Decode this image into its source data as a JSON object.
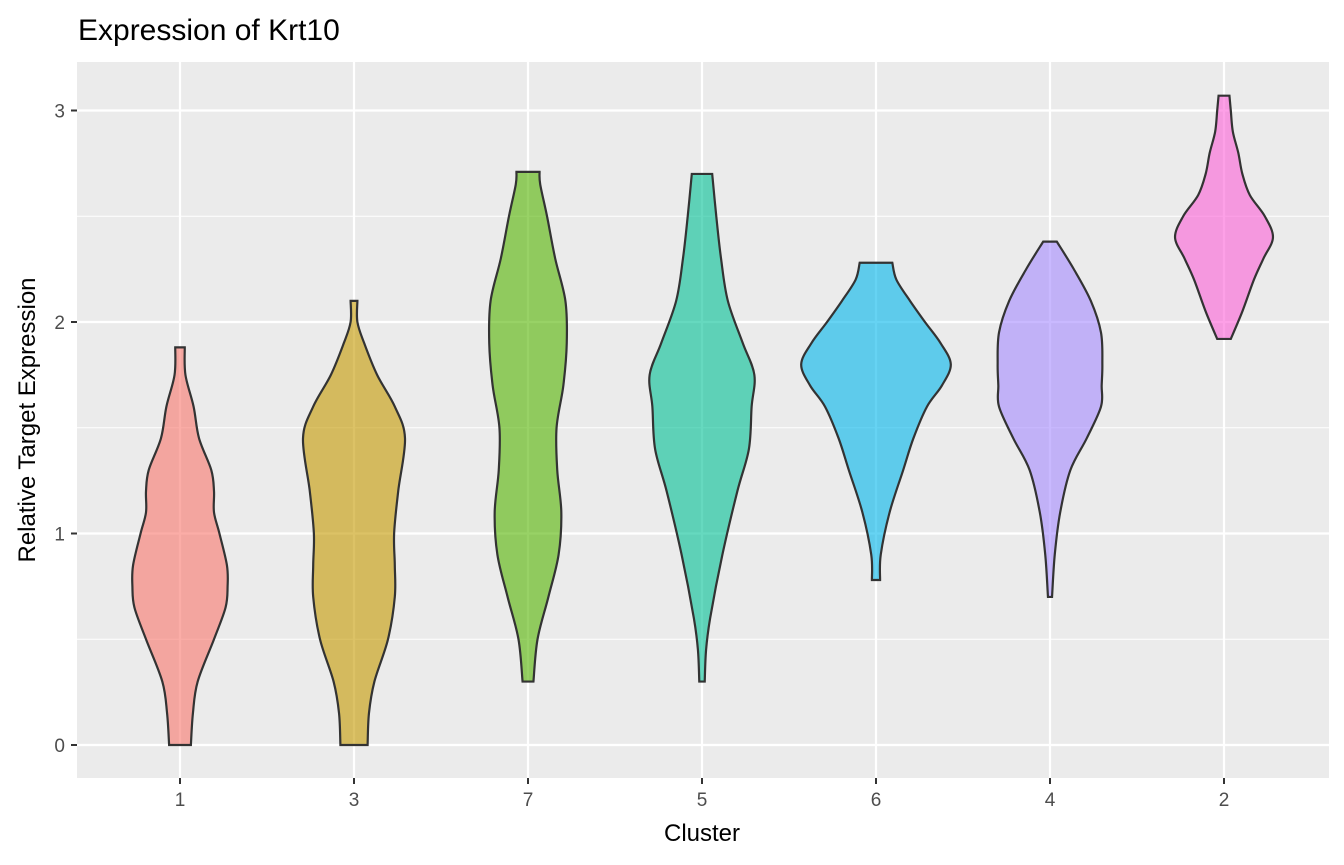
{
  "chart_data": {
    "type": "violin",
    "title": "Expression of Krt10",
    "xlabel": "Cluster",
    "ylabel": "Relative Target Expression",
    "ylim": [
      -0.15,
      3.2
    ],
    "yticks": [
      0,
      1,
      2,
      3
    ],
    "grid": true,
    "legend": "none",
    "categories": [
      "1",
      "3",
      "7",
      "5",
      "6",
      "4",
      "2"
    ],
    "series": [
      {
        "category": "1",
        "color": "#F8766D",
        "min": 0.0,
        "max": 1.88,
        "profile": [
          [
            0.0,
            0.16
          ],
          [
            0.15,
            0.19
          ],
          [
            0.3,
            0.26
          ],
          [
            0.5,
            0.5
          ],
          [
            0.65,
            0.67
          ],
          [
            0.75,
            0.7
          ],
          [
            0.85,
            0.69
          ],
          [
            1.0,
            0.58
          ],
          [
            1.1,
            0.5
          ],
          [
            1.2,
            0.5
          ],
          [
            1.3,
            0.46
          ],
          [
            1.45,
            0.28
          ],
          [
            1.6,
            0.2
          ],
          [
            1.75,
            0.08
          ],
          [
            1.88,
            0.07
          ]
        ]
      },
      {
        "category": "3",
        "color": "#C49A00",
        "min": 0.0,
        "max": 2.1,
        "profile": [
          [
            0.0,
            0.2
          ],
          [
            0.15,
            0.22
          ],
          [
            0.3,
            0.3
          ],
          [
            0.5,
            0.5
          ],
          [
            0.7,
            0.6
          ],
          [
            0.85,
            0.6
          ],
          [
            1.0,
            0.59
          ],
          [
            1.2,
            0.65
          ],
          [
            1.45,
            0.75
          ],
          [
            1.6,
            0.6
          ],
          [
            1.75,
            0.34
          ],
          [
            1.9,
            0.15
          ],
          [
            2.0,
            0.05
          ],
          [
            2.1,
            0.05
          ]
        ]
      },
      {
        "category": "7",
        "color": "#53B400",
        "min": 0.3,
        "max": 2.71,
        "profile": [
          [
            0.3,
            0.08
          ],
          [
            0.5,
            0.14
          ],
          [
            0.7,
            0.3
          ],
          [
            0.9,
            0.45
          ],
          [
            1.1,
            0.49
          ],
          [
            1.3,
            0.43
          ],
          [
            1.5,
            0.42
          ],
          [
            1.7,
            0.52
          ],
          [
            1.9,
            0.57
          ],
          [
            2.1,
            0.55
          ],
          [
            2.3,
            0.4
          ],
          [
            2.5,
            0.28
          ],
          [
            2.65,
            0.18
          ],
          [
            2.71,
            0.17
          ]
        ]
      },
      {
        "category": "5",
        "color": "#00C094",
        "min": 0.3,
        "max": 2.71,
        "profile": [
          [
            0.3,
            0.04
          ],
          [
            0.45,
            0.06
          ],
          [
            0.6,
            0.12
          ],
          [
            0.9,
            0.3
          ],
          [
            1.2,
            0.52
          ],
          [
            1.4,
            0.69
          ],
          [
            1.6,
            0.73
          ],
          [
            1.75,
            0.77
          ],
          [
            1.9,
            0.6
          ],
          [
            2.1,
            0.38
          ],
          [
            2.3,
            0.28
          ],
          [
            2.5,
            0.21
          ],
          [
            2.7,
            0.15
          ]
        ]
      },
      {
        "category": "6",
        "color": "#00B6EB",
        "min": 0.78,
        "max": 2.28,
        "profile": [
          [
            0.78,
            0.06
          ],
          [
            0.9,
            0.07
          ],
          [
            1.1,
            0.2
          ],
          [
            1.3,
            0.4
          ],
          [
            1.45,
            0.55
          ],
          [
            1.6,
            0.75
          ],
          [
            1.7,
            0.97
          ],
          [
            1.8,
            1.1
          ],
          [
            1.9,
            0.95
          ],
          [
            2.0,
            0.72
          ],
          [
            2.1,
            0.5
          ],
          [
            2.2,
            0.3
          ],
          [
            2.28,
            0.24
          ]
        ]
      },
      {
        "category": "4",
        "color": "#A58AFF",
        "min": 0.7,
        "max": 2.38,
        "profile": [
          [
            0.7,
            0.03
          ],
          [
            0.9,
            0.07
          ],
          [
            1.1,
            0.15
          ],
          [
            1.3,
            0.3
          ],
          [
            1.45,
            0.54
          ],
          [
            1.6,
            0.75
          ],
          [
            1.7,
            0.76
          ],
          [
            1.8,
            0.77
          ],
          [
            1.95,
            0.75
          ],
          [
            2.1,
            0.6
          ],
          [
            2.25,
            0.35
          ],
          [
            2.38,
            0.1
          ]
        ]
      },
      {
        "category": "2",
        "color": "#FB61D7",
        "min": 1.92,
        "max": 3.07,
        "profile": [
          [
            1.92,
            0.1
          ],
          [
            2.05,
            0.27
          ],
          [
            2.2,
            0.44
          ],
          [
            2.3,
            0.58
          ],
          [
            2.4,
            0.72
          ],
          [
            2.5,
            0.6
          ],
          [
            2.6,
            0.38
          ],
          [
            2.7,
            0.27
          ],
          [
            2.8,
            0.21
          ],
          [
            2.9,
            0.13
          ],
          [
            3.0,
            0.1
          ],
          [
            3.07,
            0.08
          ]
        ]
      }
    ]
  }
}
